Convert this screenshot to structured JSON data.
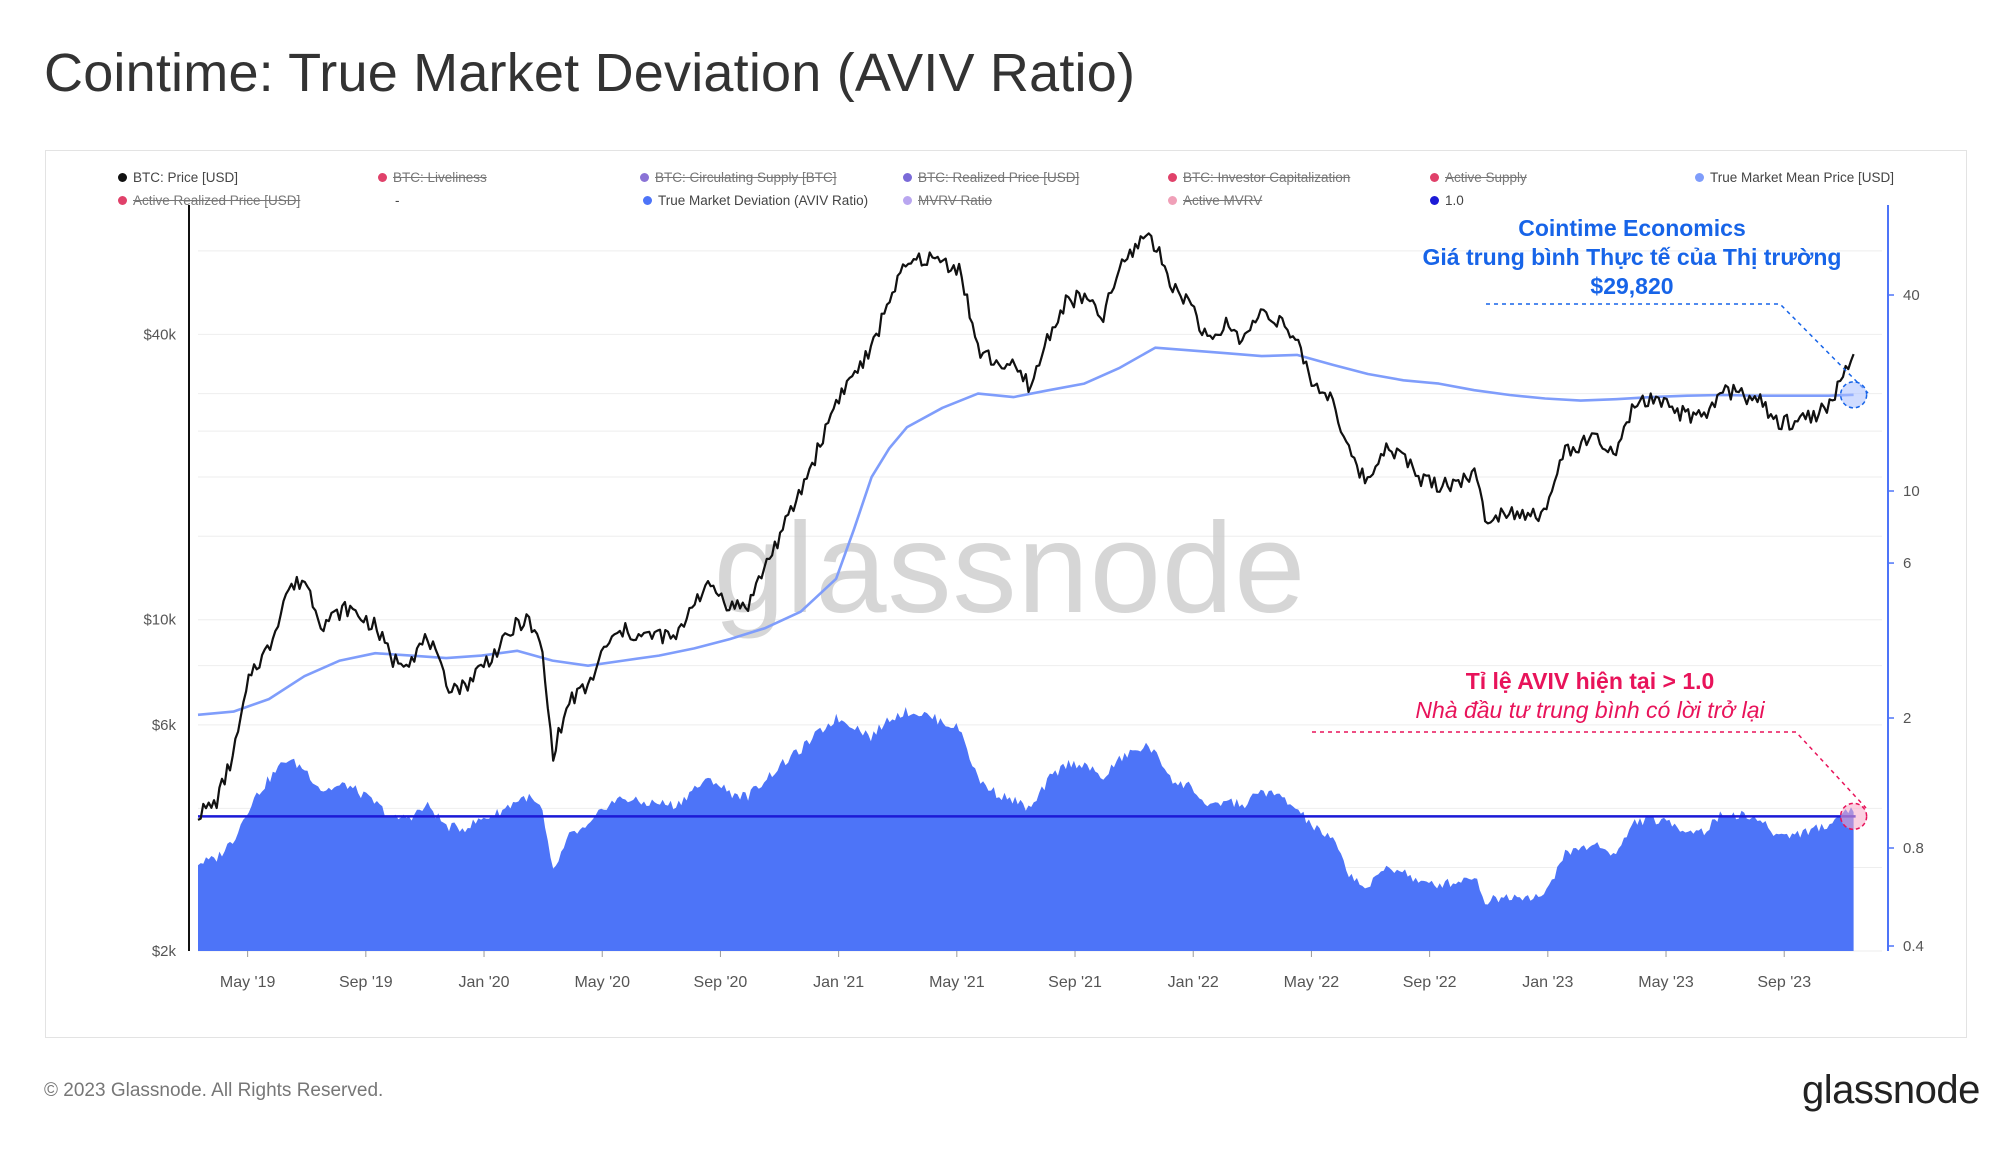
{
  "title": "Cointime: True Market Deviation (AVIV Ratio)",
  "footer": "© 2023 Glassnode. All Rights Reserved.",
  "brand": "glassnode",
  "watermark": "glassnode",
  "colors": {
    "price": "#111111",
    "tmmp": "#7f9dfb",
    "aviv_fill": "#4d74f8",
    "one_line": "#1c1ad6",
    "annot_blue": "#1764e8",
    "annot_red": "#e8135a"
  },
  "legend": [
    {
      "label": "BTC: Price [USD]",
      "color": "#111111",
      "active": true
    },
    {
      "label": "BTC: Liveliness",
      "color": "#e0416a",
      "active": false
    },
    {
      "label": "BTC: Circulating Supply [BTC]",
      "color": "#8a73d6",
      "active": false
    },
    {
      "label": "BTC: Realized Price [USD]",
      "color": "#7a6ad8",
      "active": false
    },
    {
      "label": "BTC: Investor Capitalization",
      "color": "#e0416a",
      "active": false
    },
    {
      "label": "Active Supply",
      "color": "#e0416a",
      "active": false
    },
    {
      "label": "True Market Mean Price [USD]",
      "color": "#7f9dfb",
      "active": true
    },
    {
      "label": "Active Realized Price [USD]",
      "color": "#e0416a",
      "active": false
    },
    {
      "label": "-",
      "color": "",
      "active": true
    },
    {
      "label": "True Market Deviation (AVIV Ratio)",
      "color": "#4d74f8",
      "active": true
    },
    {
      "label": "MVRV Ratio",
      "color": "#b9a6f0",
      "active": false
    },
    {
      "label": "Active MVRV",
      "color": "#f0a0b8",
      "active": false
    },
    {
      "label": "1.0",
      "color": "#1c1ad6",
      "active": true
    }
  ],
  "annotations": {
    "blue_line1": "Cointime Economics",
    "blue_line2": "Giá trung bình Thực tế của Thị trường",
    "blue_line3": "$29,820",
    "red_line1": "Tỉ lệ AVIV hiện tại > 1.0",
    "red_line2": "Nhà đầu tư trung bình có lời trở lại"
  },
  "chart_data": {
    "type": "line",
    "title": "Cointime: True Market Deviation (AVIV Ratio)",
    "x_ticks": [
      "May '19",
      "Sep '19",
      "Jan '20",
      "May '20",
      "Sep '20",
      "Jan '21",
      "May '21",
      "Sep '21",
      "Jan '22",
      "May '22",
      "Sep '22",
      "Jan '23",
      "May '23",
      "Sep '23"
    ],
    "y_left_ticks": [
      {
        "label": "$40k",
        "value": 40000
      },
      {
        "label": "$10k",
        "value": 10000
      },
      {
        "label": "$6k",
        "value": 6000
      },
      {
        "label": "$2k",
        "value": 2000
      }
    ],
    "y_left_range": [
      2000,
      75000
    ],
    "y_right_ticks": [
      {
        "label": "40",
        "value": 40
      },
      {
        "label": "10",
        "value": 10
      },
      {
        "label": "6",
        "value": 6
      },
      {
        "label": "2",
        "value": 2
      },
      {
        "label": "0.8",
        "value": 0.8
      },
      {
        "label": "0.4",
        "value": 0.4
      }
    ],
    "x_range_months": [
      2019.2,
      2023.95
    ],
    "series": [
      {
        "name": "BTC: Price [USD]",
        "axis": "left",
        "points": [
          [
            2019.2,
            3900
          ],
          [
            2019.25,
            4100
          ],
          [
            2019.3,
            5200
          ],
          [
            2019.35,
            7800
          ],
          [
            2019.4,
            8700
          ],
          [
            2019.45,
            11500
          ],
          [
            2019.5,
            12200
          ],
          [
            2019.55,
            9800
          ],
          [
            2019.62,
            10600
          ],
          [
            2019.7,
            9700
          ],
          [
            2019.75,
            8200
          ],
          [
            2019.8,
            8300
          ],
          [
            2019.85,
            9200
          ],
          [
            2019.9,
            7300
          ],
          [
            2019.95,
            7200
          ],
          [
            2020.0,
            8000
          ],
          [
            2020.05,
            8700
          ],
          [
            2020.1,
            9800
          ],
          [
            2020.13,
            10000
          ],
          [
            2020.17,
            8700
          ],
          [
            2020.2,
            5200
          ],
          [
            2020.25,
            6800
          ],
          [
            2020.3,
            7200
          ],
          [
            2020.35,
            8800
          ],
          [
            2020.4,
            9500
          ],
          [
            2020.45,
            9200
          ],
          [
            2020.5,
            9300
          ],
          [
            2020.55,
            9100
          ],
          [
            2020.6,
            11100
          ],
          [
            2020.65,
            11800
          ],
          [
            2020.7,
            10700
          ],
          [
            2020.75,
            10700
          ],
          [
            2020.8,
            13000
          ],
          [
            2020.85,
            15500
          ],
          [
            2020.9,
            18700
          ],
          [
            2020.95,
            23000
          ],
          [
            2021.0,
            29000
          ],
          [
            2021.05,
            33000
          ],
          [
            2021.1,
            37000
          ],
          [
            2021.15,
            48000
          ],
          [
            2021.2,
            56000
          ],
          [
            2021.25,
            58000
          ],
          [
            2021.3,
            57000
          ],
          [
            2021.35,
            55000
          ],
          [
            2021.4,
            37000
          ],
          [
            2021.45,
            35000
          ],
          [
            2021.5,
            34000
          ],
          [
            2021.55,
            31000
          ],
          [
            2021.6,
            40000
          ],
          [
            2021.65,
            47000
          ],
          [
            2021.7,
            48000
          ],
          [
            2021.75,
            43000
          ],
          [
            2021.8,
            55000
          ],
          [
            2021.85,
            62000
          ],
          [
            2021.88,
            66000
          ],
          [
            2021.92,
            57000
          ],
          [
            2021.96,
            49000
          ],
          [
            2022.0,
            47000
          ],
          [
            2022.05,
            38000
          ],
          [
            2022.1,
            42000
          ],
          [
            2022.15,
            39000
          ],
          [
            2022.2,
            45000
          ],
          [
            2022.25,
            43000
          ],
          [
            2022.3,
            38000
          ],
          [
            2022.35,
            31000
          ],
          [
            2022.4,
            29500
          ],
          [
            2022.45,
            22000
          ],
          [
            2022.5,
            19500
          ],
          [
            2022.55,
            23500
          ],
          [
            2022.6,
            22000
          ],
          [
            2022.65,
            19800
          ],
          [
            2022.7,
            19300
          ],
          [
            2022.75,
            19500
          ],
          [
            2022.8,
            20500
          ],
          [
            2022.83,
            16500
          ],
          [
            2022.9,
            17000
          ],
          [
            2022.95,
            16800
          ],
          [
            2023.0,
            16600
          ],
          [
            2023.05,
            22500
          ],
          [
            2023.1,
            23500
          ],
          [
            2023.15,
            24000
          ],
          [
            2023.2,
            22000
          ],
          [
            2023.25,
            28500
          ],
          [
            2023.3,
            29000
          ],
          [
            2023.35,
            28000
          ],
          [
            2023.4,
            27000
          ],
          [
            2023.45,
            26500
          ],
          [
            2023.5,
            30500
          ],
          [
            2023.55,
            30000
          ],
          [
            2023.6,
            29200
          ],
          [
            2023.65,
            26000
          ],
          [
            2023.7,
            26200
          ],
          [
            2023.75,
            27000
          ],
          [
            2023.8,
            28000
          ],
          [
            2023.85,
            34500
          ],
          [
            2023.87,
            35000
          ]
        ]
      },
      {
        "name": "True Market Mean Price [USD]",
        "axis": "left",
        "points": [
          [
            2019.2,
            6300
          ],
          [
            2019.3,
            6400
          ],
          [
            2019.4,
            6800
          ],
          [
            2019.5,
            7600
          ],
          [
            2019.6,
            8200
          ],
          [
            2019.7,
            8500
          ],
          [
            2019.8,
            8400
          ],
          [
            2019.9,
            8300
          ],
          [
            2020.0,
            8400
          ],
          [
            2020.1,
            8600
          ],
          [
            2020.2,
            8200
          ],
          [
            2020.3,
            8000
          ],
          [
            2020.4,
            8200
          ],
          [
            2020.5,
            8400
          ],
          [
            2020.6,
            8700
          ],
          [
            2020.7,
            9100
          ],
          [
            2020.8,
            9600
          ],
          [
            2020.9,
            10400
          ],
          [
            2021.0,
            12200
          ],
          [
            2021.05,
            15500
          ],
          [
            2021.1,
            20000
          ],
          [
            2021.15,
            23000
          ],
          [
            2021.2,
            25500
          ],
          [
            2021.3,
            28000
          ],
          [
            2021.4,
            30000
          ],
          [
            2021.5,
            29500
          ],
          [
            2021.6,
            30500
          ],
          [
            2021.7,
            31500
          ],
          [
            2021.8,
            34000
          ],
          [
            2021.9,
            37500
          ],
          [
            2022.0,
            37000
          ],
          [
            2022.1,
            36500
          ],
          [
            2022.2,
            36000
          ],
          [
            2022.3,
            36200
          ],
          [
            2022.4,
            34500
          ],
          [
            2022.5,
            33000
          ],
          [
            2022.6,
            32000
          ],
          [
            2022.7,
            31500
          ],
          [
            2022.8,
            30500
          ],
          [
            2022.9,
            29800
          ],
          [
            2023.0,
            29300
          ],
          [
            2023.1,
            29000
          ],
          [
            2023.2,
            29200
          ],
          [
            2023.3,
            29500
          ],
          [
            2023.4,
            29700
          ],
          [
            2023.5,
            29800
          ],
          [
            2023.6,
            29700
          ],
          [
            2023.7,
            29700
          ],
          [
            2023.8,
            29700
          ],
          [
            2023.87,
            29820
          ]
        ]
      },
      {
        "name": "True Market Deviation (AVIV Ratio)",
        "axis": "right",
        "points": [
          [
            2019.2,
            0.72
          ],
          [
            2019.25,
            0.74
          ],
          [
            2019.3,
            0.85
          ],
          [
            2019.35,
            1.1
          ],
          [
            2019.4,
            1.3
          ],
          [
            2019.45,
            1.5
          ],
          [
            2019.5,
            1.4
          ],
          [
            2019.55,
            1.2
          ],
          [
            2019.62,
            1.25
          ],
          [
            2019.7,
            1.1
          ],
          [
            2019.75,
            0.98
          ],
          [
            2019.8,
            1.0
          ],
          [
            2019.85,
            1.08
          ],
          [
            2019.9,
            0.93
          ],
          [
            2019.95,
            0.92
          ],
          [
            2020.0,
            0.98
          ],
          [
            2020.05,
            1.03
          ],
          [
            2020.1,
            1.12
          ],
          [
            2020.13,
            1.15
          ],
          [
            2020.17,
            1.05
          ],
          [
            2020.2,
            0.67
          ],
          [
            2020.25,
            0.88
          ],
          [
            2020.3,
            0.92
          ],
          [
            2020.35,
            1.08
          ],
          [
            2020.4,
            1.14
          ],
          [
            2020.45,
            1.1
          ],
          [
            2020.5,
            1.1
          ],
          [
            2020.55,
            1.08
          ],
          [
            2020.6,
            1.22
          ],
          [
            2020.65,
            1.3
          ],
          [
            2020.7,
            1.18
          ],
          [
            2020.75,
            1.15
          ],
          [
            2020.8,
            1.3
          ],
          [
            2020.85,
            1.45
          ],
          [
            2020.9,
            1.6
          ],
          [
            2020.95,
            1.8
          ],
          [
            2021.0,
            2.0
          ],
          [
            2021.05,
            1.9
          ],
          [
            2021.1,
            1.75
          ],
          [
            2021.15,
            2.0
          ],
          [
            2021.2,
            2.1
          ],
          [
            2021.25,
            2.05
          ],
          [
            2021.3,
            1.95
          ],
          [
            2021.35,
            1.85
          ],
          [
            2021.4,
            1.3
          ],
          [
            2021.45,
            1.18
          ],
          [
            2021.5,
            1.12
          ],
          [
            2021.55,
            1.05
          ],
          [
            2021.6,
            1.3
          ],
          [
            2021.65,
            1.45
          ],
          [
            2021.7,
            1.45
          ],
          [
            2021.75,
            1.3
          ],
          [
            2021.8,
            1.5
          ],
          [
            2021.85,
            1.6
          ],
          [
            2021.88,
            1.65
          ],
          [
            2021.92,
            1.45
          ],
          [
            2021.96,
            1.25
          ],
          [
            2022.0,
            1.25
          ],
          [
            2022.05,
            1.05
          ],
          [
            2022.1,
            1.12
          ],
          [
            2022.15,
            1.08
          ],
          [
            2022.2,
            1.2
          ],
          [
            2022.25,
            1.15
          ],
          [
            2022.3,
            1.05
          ],
          [
            2022.35,
            0.92
          ],
          [
            2022.4,
            0.85
          ],
          [
            2022.45,
            0.66
          ],
          [
            2022.5,
            0.6
          ],
          [
            2022.55,
            0.7
          ],
          [
            2022.6,
            0.68
          ],
          [
            2022.65,
            0.62
          ],
          [
            2022.7,
            0.62
          ],
          [
            2022.75,
            0.63
          ],
          [
            2022.8,
            0.66
          ],
          [
            2022.83,
            0.55
          ],
          [
            2022.9,
            0.57
          ],
          [
            2022.95,
            0.57
          ],
          [
            2023.0,
            0.57
          ],
          [
            2023.05,
            0.76
          ],
          [
            2023.1,
            0.8
          ],
          [
            2023.15,
            0.82
          ],
          [
            2023.2,
            0.76
          ],
          [
            2023.25,
            0.96
          ],
          [
            2023.3,
            0.98
          ],
          [
            2023.35,
            0.95
          ],
          [
            2023.4,
            0.91
          ],
          [
            2023.45,
            0.9
          ],
          [
            2023.5,
            1.02
          ],
          [
            2023.55,
            1.01
          ],
          [
            2023.6,
            0.98
          ],
          [
            2023.65,
            0.88
          ],
          [
            2023.7,
            0.88
          ],
          [
            2023.75,
            0.91
          ],
          [
            2023.8,
            0.94
          ],
          [
            2023.85,
            1.05
          ],
          [
            2023.87,
            1.06
          ]
        ]
      },
      {
        "name": "1.0",
        "axis": "right",
        "value": 1.0
      }
    ]
  }
}
